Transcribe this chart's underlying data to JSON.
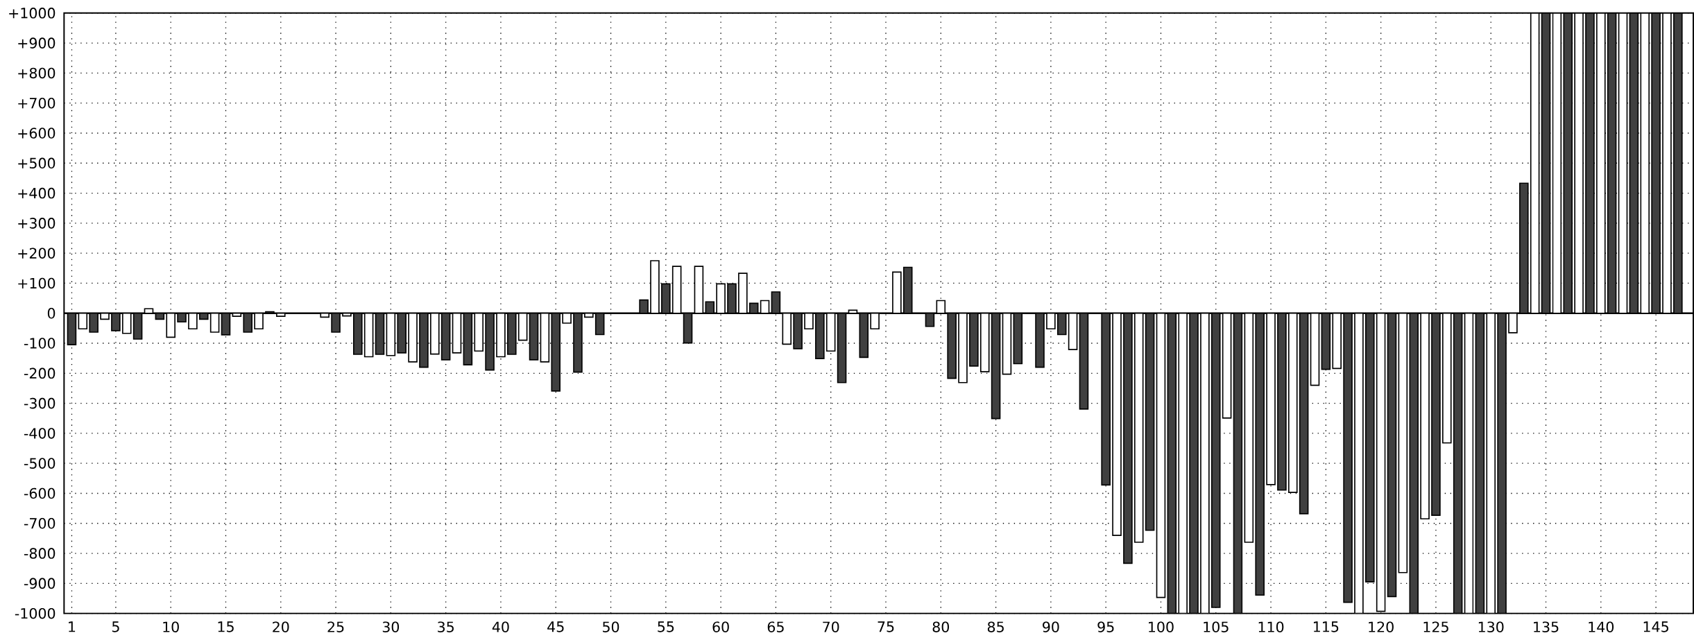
{
  "chart_data": {
    "type": "bar",
    "x": [
      1,
      2,
      3,
      4,
      5,
      6,
      7,
      8,
      9,
      10,
      11,
      12,
      13,
      14,
      15,
      16,
      17,
      18,
      19,
      20,
      21,
      22,
      23,
      24,
      25,
      26,
      27,
      28,
      29,
      30,
      31,
      32,
      33,
      34,
      35,
      36,
      37,
      38,
      39,
      40,
      41,
      42,
      43,
      44,
      45,
      46,
      47,
      48,
      49,
      50,
      51,
      52,
      53,
      54,
      55,
      56,
      57,
      58,
      59,
      60,
      61,
      62,
      63,
      64,
      65,
      66,
      67,
      68,
      69,
      70,
      71,
      72,
      73,
      74,
      75,
      76,
      77,
      78,
      79,
      80,
      81,
      82,
      83,
      84,
      85,
      86,
      87,
      88,
      89,
      90,
      91,
      92,
      93,
      94,
      95,
      96,
      97,
      98,
      99,
      100,
      101,
      102,
      103,
      104,
      105,
      106,
      107,
      108,
      109,
      110,
      111,
      112,
      113,
      114,
      115,
      116,
      117,
      118,
      119,
      120,
      121,
      122,
      123,
      124,
      125,
      126,
      127,
      128,
      129,
      130,
      131,
      132,
      133,
      134,
      135,
      136,
      137,
      138,
      139,
      140,
      141,
      142,
      143,
      144,
      145,
      146,
      147
    ],
    "values": [
      -105,
      -52,
      -63,
      -20,
      -58,
      -67,
      -86,
      15,
      -20,
      -80,
      -29,
      -52,
      -20,
      -63,
      -72,
      -10,
      -63,
      -52,
      5,
      -10,
      0,
      0,
      0,
      -13,
      -63,
      -9,
      -137,
      -145,
      -137,
      -141,
      -132,
      -162,
      -180,
      -136,
      -155,
      -132,
      -172,
      -126,
      -189,
      -145,
      -137,
      -90,
      -155,
      -162,
      -259,
      -33,
      -196,
      -13,
      -71,
      0,
      0,
      0,
      44,
      175,
      98,
      156,
      -99,
      156,
      38,
      98,
      98,
      133,
      33,
      42,
      71,
      -103,
      -118,
      -52,
      -151,
      -126,
      -231,
      10,
      -147,
      -52,
      0,
      137,
      153,
      0,
      -44,
      42,
      -217,
      -231,
      -176,
      -195,
      -351,
      -203,
      -168,
      0,
      -180,
      -52,
      -71,
      -121,
      -319,
      0,
      -572,
      -740,
      -833,
      -763,
      -723,
      -947,
      -1000,
      -1000,
      -1000,
      -1000,
      -980,
      -349,
      -1000,
      -763,
      -939,
      -571,
      -589,
      -597,
      -668,
      -240,
      -187,
      -184,
      -963,
      -1000,
      -895,
      -993,
      -944,
      -864,
      -1000,
      -685,
      -673,
      -432,
      -1000,
      -1000,
      -1000,
      -1000,
      -1000,
      -65,
      433,
      1000,
      1000,
      1000,
      1000,
      1000,
      1000,
      1000,
      1000,
      1000,
      1000,
      1000,
      1000,
      1000,
      1000
    ],
    "colors": [
      "#404040",
      "#ffffff",
      "#404040",
      "#ffffff",
      "#404040",
      "#ffffff",
      "#404040",
      "#ffffff",
      "#404040",
      "#ffffff",
      "#404040",
      "#ffffff",
      "#404040",
      "#ffffff",
      "#404040",
      "#ffffff",
      "#404040",
      "#ffffff",
      "#404040",
      "#ffffff",
      "#404040",
      "#ffffff",
      "#404040",
      "#ffffff",
      "#404040",
      "#ffffff",
      "#404040",
      "#ffffff",
      "#404040",
      "#ffffff",
      "#404040",
      "#ffffff",
      "#404040",
      "#ffffff",
      "#404040",
      "#ffffff",
      "#404040",
      "#ffffff",
      "#404040",
      "#ffffff",
      "#404040",
      "#ffffff",
      "#404040",
      "#ffffff",
      "#404040",
      "#ffffff",
      "#404040",
      "#ffffff",
      "#404040",
      "#ffffff",
      "#404040",
      "#ffffff",
      "#404040",
      "#ffffff",
      "#404040",
      "#ffffff",
      "#404040",
      "#ffffff",
      "#404040",
      "#ffffff",
      "#404040",
      "#ffffff",
      "#404040",
      "#ffffff",
      "#404040",
      "#ffffff",
      "#404040",
      "#ffffff",
      "#404040",
      "#ffffff",
      "#404040",
      "#ffffff",
      "#404040",
      "#ffffff",
      "#404040",
      "#ffffff",
      "#404040",
      "#ffffff",
      "#404040",
      "#ffffff",
      "#404040",
      "#ffffff",
      "#404040",
      "#ffffff",
      "#404040",
      "#ffffff",
      "#404040",
      "#ffffff",
      "#404040",
      "#ffffff",
      "#404040",
      "#ffffff",
      "#404040",
      "#ffffff",
      "#404040",
      "#ffffff",
      "#404040",
      "#ffffff",
      "#404040",
      "#ffffff",
      "#404040",
      "#ffffff",
      "#404040",
      "#ffffff",
      "#404040",
      "#ffffff",
      "#404040",
      "#ffffff",
      "#404040",
      "#ffffff",
      "#404040",
      "#ffffff",
      "#404040",
      "#ffffff",
      "#404040",
      "#ffffff",
      "#404040",
      "#ffffff",
      "#404040",
      "#ffffff",
      "#404040",
      "#ffffff",
      "#404040",
      "#ffffff",
      "#404040",
      "#ffffff",
      "#404040",
      "#ffffff",
      "#404040",
      "#ffffff",
      "#404040",
      "#ffffff",
      "#404040",
      "#ffffff",
      "#404040",
      "#ffffff",
      "#404040",
      "#ffffff",
      "#404040",
      "#ffffff",
      "#404040",
      "#ffffff",
      "#404040",
      "#ffffff",
      "#404040",
      "#ffffff",
      "#404040"
    ],
    "xlim": [
      0.3,
      148.4
    ],
    "xticks": [
      1,
      5,
      10,
      15,
      20,
      25,
      30,
      35,
      40,
      45,
      50,
      55,
      60,
      65,
      70,
      75,
      80,
      85,
      90,
      95,
      100,
      105,
      110,
      115,
      120,
      125,
      130,
      135,
      140,
      145
    ],
    "ylim": [
      -1000,
      1000
    ],
    "yticks": [
      -1000,
      -900,
      -800,
      -700,
      -600,
      -500,
      -400,
      -300,
      -200,
      -100,
      0,
      {
        "value": 100,
        "label": "+100"
      },
      {
        "value": 200,
        "label": "+200"
      },
      {
        "value": 300,
        "label": "+300"
      },
      {
        "value": 400,
        "label": "+400"
      },
      {
        "value": 500,
        "label": "+500"
      },
      {
        "value": 600,
        "label": "+600"
      },
      {
        "value": 700,
        "label": "+700"
      },
      {
        "value": 800,
        "label": "+800"
      },
      {
        "value": 900,
        "label": "+900"
      },
      {
        "value": 1000,
        "label": "+1000"
      }
    ],
    "ref_lines": [
      {
        "axis": "y",
        "value": 0,
        "color": "#000000"
      }
    ],
    "grid": true
  }
}
